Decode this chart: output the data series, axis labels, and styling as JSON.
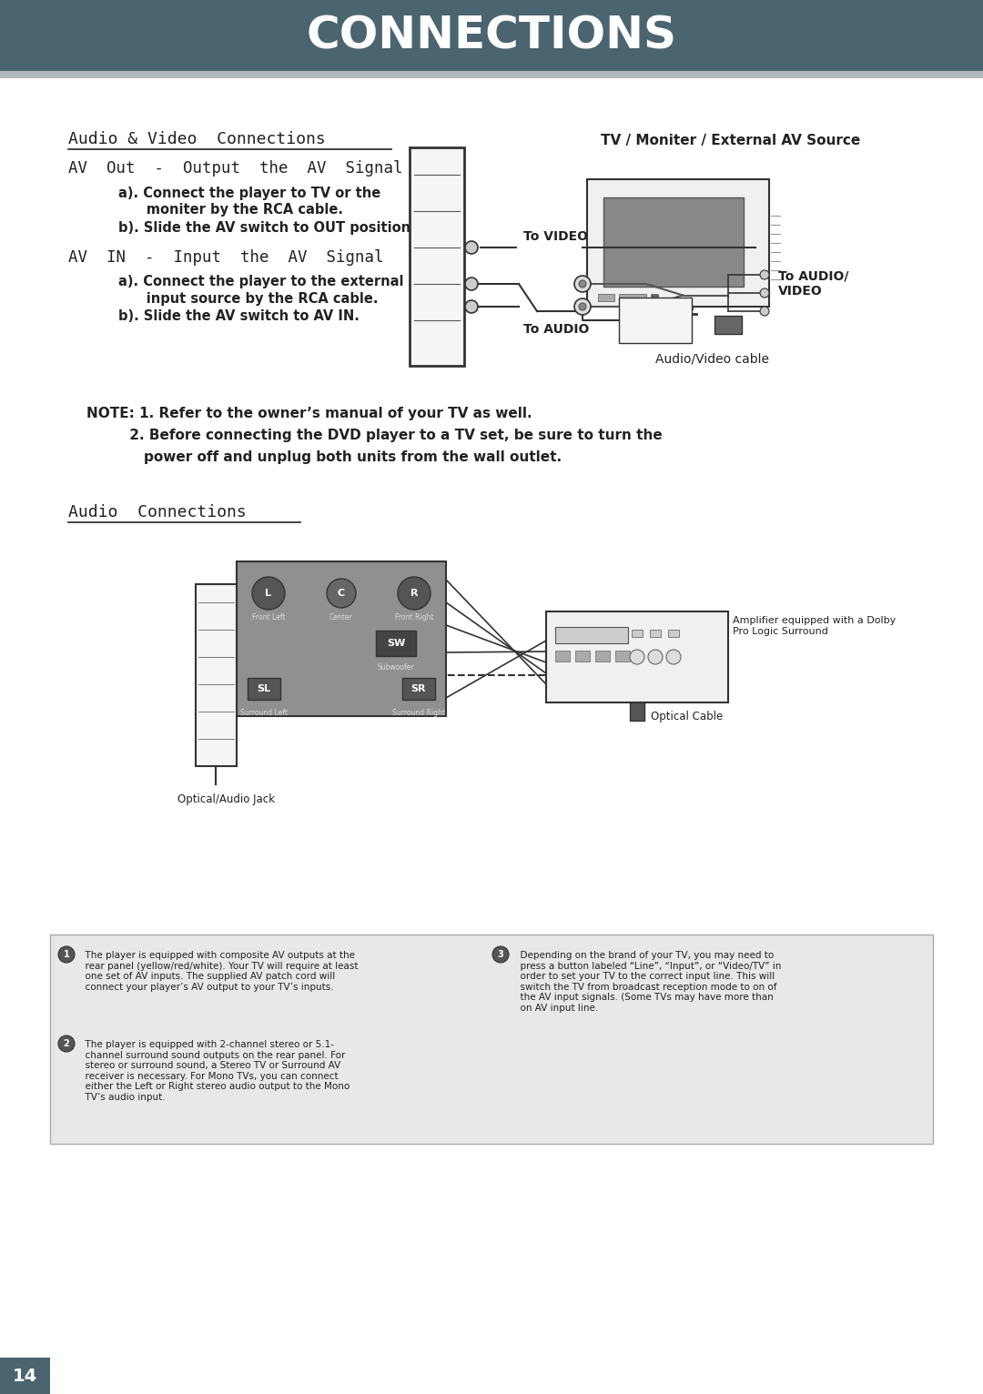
{
  "header_bg": "#4a6570",
  "header_text": "CONNECTIONS",
  "header_text_color": "#ffffff",
  "page_bg": "#ffffff",
  "page_num": "14",
  "section1_title": "Audio & Video  Connections",
  "section1_subtitle_right": "TV / Moniter / External AV Source",
  "av_out_heading": "AV  Out  -  Output  the  AV  Signal",
  "av_out_a": "a). Connect the player to TV or the",
  "av_out_a2": "      moniter by the RCA cable.",
  "av_out_b": "b). Slide the AV switch to OUT position.",
  "av_in_heading": "AV  IN  -  Input  the  AV  Signal",
  "av_in_a": "a). Connect the player to the external",
  "av_in_a2": "      input source by the RCA cable.",
  "av_in_b": "b). Slide the AV switch to AV IN.",
  "label_to_video": "To VIDEO",
  "label_to_audio": "To AUDIO",
  "label_to_audio_video": "To AUDIO/\nVIDEO",
  "label_av_cable": "Audio/Video cable",
  "note_line1": "NOTE: 1. Refer to the owner’s manual of your TV as well.",
  "note_line2": "         2. Before connecting the DVD player to a TV set, be sure to turn the",
  "note_line3": "            power off and unplug both units from the wall outlet.",
  "section2_title": "Audio  Connections",
  "amplifier_label": "Amplifier equipped with a Dolby\nPro Logic Surround",
  "optical_cable_label": "Optical Cable",
  "optical_jack_label": "Optical/Audio Jack",
  "speaker_labels": [
    "L",
    "C",
    "R",
    "SW",
    "SL",
    "SR"
  ],
  "speaker_sublabels": [
    "Front Left",
    "Center",
    "Front Right",
    "Subwoofer",
    "Surround Left",
    "Surround Right"
  ],
  "footnote1": "  The player is equipped with composite AV outputs at the\n  rear panel (yellow/red/white). Your TV will require at least\n  one set of AV inputs. The supplied AV patch cord will\n  connect your player’s AV output to your TV’s inputs.",
  "footnote2": "  The player is equipped with 2-channel stereo or 5.1-\n  channel surround sound outputs on the rear panel. For\n  stereo or surround sound, a Stereo TV or Surround AV\n  receiver is necessary. For Mono TVs, you can connect\n  either the Left or Right stereo audio output to the Mono\n  TV’s audio input.",
  "footnote3": "  Depending on the brand of your TV, you may need to\n  press a button labeled “Line”, “Input”, or “Video/TV” in\n  order to set your TV to the correct input line. This will\n  switch the TV from broadcast reception mode to on of\n  the AV input signals. (Some TVs may have more than\n  on AV input line.",
  "gray_line_color": "#999999",
  "dark_color": "#222222",
  "mid_gray": "#888888",
  "light_gray": "#cccccc",
  "panel_gray": "#808080"
}
